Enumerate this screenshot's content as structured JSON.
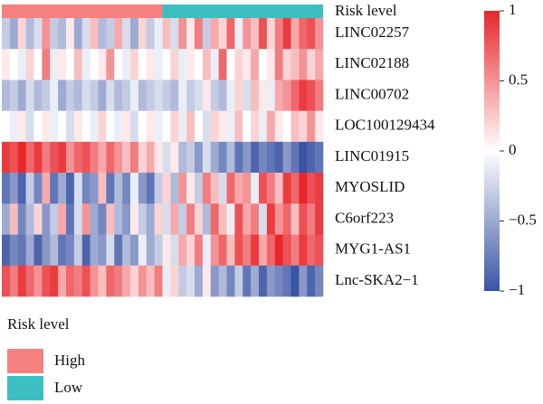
{
  "chart_data": {
    "type": "heatmap",
    "annotation_label": "Risk level",
    "rows": [
      "LINC02257",
      "LINC02188",
      "LINC00702",
      "LOC100129434",
      "LINC01915",
      "MYOSLID",
      "C6orf223",
      "MYG1-AS1",
      "Lnc-SKA2−1"
    ],
    "values": [
      [
        -0.3,
        -0.5,
        0.2,
        -0.4,
        -0.2,
        0.5,
        -0.3,
        -0.4,
        0.1,
        -0.5,
        -0.2,
        0.3,
        -0.4,
        -0.3,
        0.4,
        -0.2,
        -0.5,
        0.2,
        -0.3,
        -0.1,
        0.3,
        -0.2,
        0.5,
        0.1,
        0.6,
        -0.3,
        0.4,
        0.2,
        0.7,
        -0.1,
        0.5,
        0.3,
        0.8,
        0.2,
        0.6,
        0.9,
        0.4,
        0.7,
        0.8,
        0.5
      ],
      [
        0.1,
        0,
        -0.1,
        0.2,
        0,
        0.6,
        -0.1,
        0.1,
        0,
        0.3,
        -0.1,
        0,
        0.1,
        0.5,
        0,
        -0.1,
        0.2,
        0,
        0.1,
        -0.1,
        0,
        0.2,
        -0.1,
        0.1,
        0,
        0.3,
        -0.1,
        0.7,
        0,
        0.2,
        0.1,
        0.4,
        0,
        0.1,
        0.6,
        0.2,
        0.3,
        0.5,
        0.2,
        0.4
      ],
      [
        -0.4,
        -0.3,
        -0.5,
        -0.2,
        -0.4,
        -0.3,
        -0.1,
        -0.5,
        -0.3,
        -0.4,
        -0.2,
        -0.3,
        -0.5,
        -0.2,
        -0.4,
        -0.3,
        -0.1,
        -0.4,
        -0.3,
        -0.2,
        -0.3,
        -0.4,
        -0.1,
        -0.3,
        -0.2,
        0.1,
        -0.3,
        -0.4,
        -0.1,
        0.2,
        -0.2,
        0.3,
        0.1,
        -0.1,
        0.4,
        0.5,
        0.7,
        0.9,
        0.8,
        0.6
      ],
      [
        0,
        -0.1,
        0.1,
        -0.2,
        0,
        0.1,
        -0.1,
        0,
        -0.2,
        0.1,
        0,
        -0.1,
        0.2,
        0,
        -0.1,
        0.1,
        -0.2,
        0,
        0.1,
        -0.1,
        0,
        0.2,
        -0.1,
        0.3,
        0,
        -0.2,
        0.2,
        0.1,
        -0.1,
        0.3,
        0,
        0.2,
        -0.1,
        0.4,
        0.1,
        0,
        0.3,
        0.2,
        0.5,
        0.1
      ],
      [
        0.9,
        0.8,
        1,
        0.7,
        0.9,
        0.6,
        0.8,
        0.9,
        0.5,
        0.7,
        0.8,
        0.6,
        0.4,
        0.7,
        0.5,
        0.3,
        0.6,
        0.2,
        0.4,
        0.1,
        -0.2,
        0.1,
        -0.4,
        -0.3,
        -0.6,
        -0.2,
        -0.5,
        -0.7,
        -0.4,
        -0.8,
        -0.6,
        -0.9,
        -0.7,
        -0.8,
        -0.9,
        -0.6,
        -0.8,
        -1,
        -0.9,
        -0.8
      ],
      [
        -0.8,
        -0.6,
        -0.9,
        -0.3,
        -0.7,
        0.4,
        -0.8,
        -0.5,
        -0.9,
        -0.2,
        -0.7,
        -0.6,
        0.3,
        -0.8,
        -0.4,
        -0.7,
        -0.1,
        -0.6,
        -0.8,
        -0.3,
        0.2,
        -0.4,
        0.5,
        0.1,
        -0.3,
        0.6,
        0.3,
        -0.2,
        0.7,
        0.4,
        0.5,
        -0.1,
        0.8,
        0.6,
        0.3,
        0.9,
        0.7,
        1,
        0.8,
        0.9
      ],
      [
        -0.5,
        0.3,
        -0.7,
        -0.4,
        0.2,
        -0.6,
        -0.3,
        0.4,
        -0.8,
        -0.2,
        0.5,
        -0.5,
        -0.7,
        0.3,
        -0.4,
        -0.6,
        0.1,
        -0.3,
        -0.5,
        0.2,
        -0.2,
        0.4,
        -0.3,
        0.6,
        0.2,
        -0.4,
        0.7,
        0.3,
        -0.1,
        0.8,
        0.4,
        0.6,
        -0.2,
        0.9,
        0.5,
        0.7,
        0.3,
        0.8,
        0.6,
        0.9
      ],
      [
        -0.9,
        -0.7,
        -0.8,
        -0.5,
        -0.9,
        -0.6,
        -0.4,
        -0.8,
        -0.7,
        -0.3,
        -0.9,
        -0.5,
        -0.6,
        -0.2,
        -0.8,
        -0.4,
        -0.6,
        -0.1,
        -0.5,
        -0.3,
        0.1,
        -0.2,
        0.4,
        0.2,
        0.6,
        -0.1,
        0.5,
        0.7,
        0.3,
        0.8,
        0.6,
        0.9,
        0.4,
        0.7,
        1,
        0.8,
        0.6,
        0.9,
        0.7,
        0.8
      ],
      [
        0.8,
        0.6,
        0.9,
        0.7,
        0.5,
        0.8,
        0.9,
        0.4,
        0.7,
        0.6,
        0.8,
        0.5,
        0.3,
        0.7,
        0.6,
        0.4,
        0.2,
        0.5,
        0.3,
        0.6,
        -0.1,
        0.2,
        -0.3,
        -0.2,
        -0.5,
        0.1,
        -0.6,
        -0.4,
        -0.7,
        -0.3,
        -0.8,
        -0.5,
        -0.9,
        -0.6,
        -0.7,
        -0.8,
        -1,
        -0.6,
        -0.9,
        -0.7
      ]
    ],
    "zlim": [
      -1,
      1
    ],
    "zticks": [
      {
        "value": -1,
        "label": "−1"
      },
      {
        "value": -0.5,
        "label": "−0.5"
      },
      0,
      0.5,
      1
    ],
    "colors": {
      "low": "#3a54a4",
      "mid": "#ffffff",
      "high": "#e8262b"
    },
    "annotation": {
      "title": "Risk level",
      "groups": [
        {
          "name": "High",
          "color": "#f4817d",
          "count": 20
        },
        {
          "name": "Low",
          "color": "#3cbfc1",
          "count": 20
        }
      ]
    }
  }
}
